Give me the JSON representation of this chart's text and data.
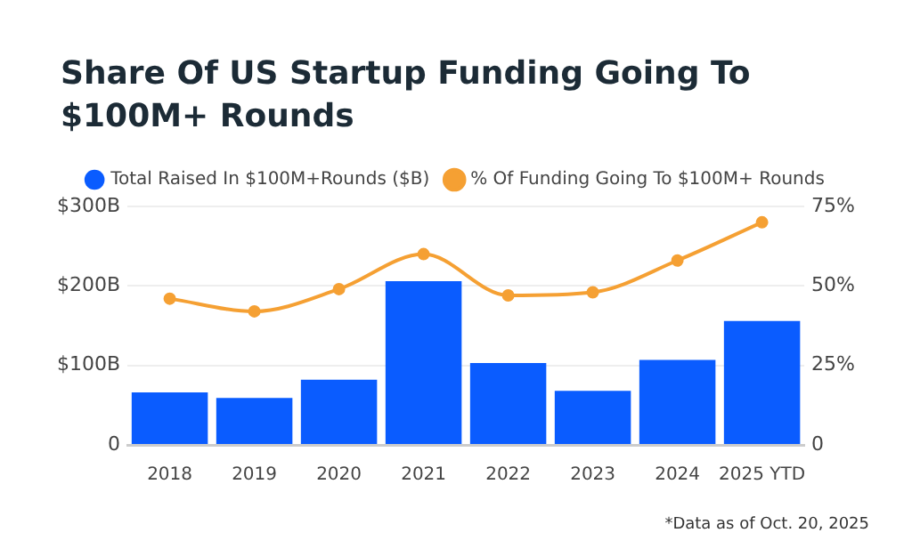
{
  "chart_data": {
    "type": "bar",
    "title": "Share Of US Startup Funding Going To $100M+ Rounds",
    "categories": [
      "2018",
      "2019",
      "2020",
      "2021",
      "2022",
      "2023",
      "2024",
      "2025 YTD"
    ],
    "series": [
      {
        "name": "Total Raised In $100M+Rounds ($B)",
        "color": "#0a5cff",
        "values": [
          66,
          59,
          82,
          206,
          103,
          68,
          107,
          156
        ]
      },
      {
        "name": "% Of Funding Going To $100M+ Rounds",
        "type": "line",
        "axis": "y2",
        "color": "#f5a033",
        "values": [
          46,
          42,
          49,
          60,
          47,
          48,
          58,
          70
        ]
      }
    ],
    "ylim": [
      0,
      300
    ],
    "yticks": [
      0,
      {
        "value": 100,
        "label": "$100B"
      },
      {
        "value": 200,
        "label": "$200B"
      },
      {
        "value": 300,
        "label": "$300B"
      }
    ],
    "y2lim": [
      0,
      75
    ],
    "y2ticks": [
      0,
      {
        "value": 25,
        "label": "25%"
      },
      {
        "value": 50,
        "label": "50%"
      },
      {
        "value": 75,
        "label": "75%"
      }
    ],
    "grid": "y",
    "legend": "top",
    "marker": "circle",
    "line_style": "solid",
    "annotations": [
      "*Data as of Oct. 20, 2025"
    ]
  }
}
